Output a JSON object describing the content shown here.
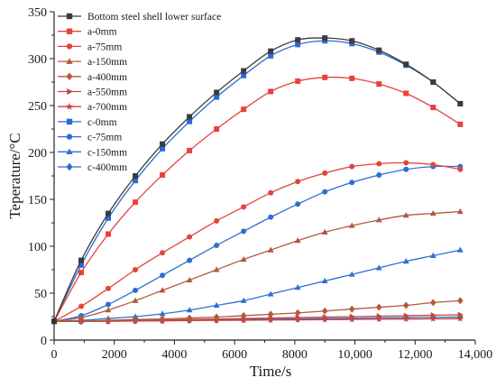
{
  "chart_data": {
    "type": "line",
    "xlabel": "Time/s",
    "ylabel": "Teperature/°C",
    "xlim": [
      0,
      14000
    ],
    "ylim": [
      0,
      350
    ],
    "grid": false,
    "legend": "top-left",
    "xticks": [
      {
        "value": 0,
        "label": "0"
      },
      {
        "value": 2000,
        "label": "2000"
      },
      {
        "value": 4000,
        "label": "4000"
      },
      {
        "value": 6000,
        "label": "6000"
      },
      {
        "value": 8000,
        "label": "8000"
      },
      {
        "value": 10000,
        "label": "10,000"
      },
      {
        "value": 12000,
        "label": "12,000"
      },
      {
        "value": 14000,
        "label": "14,000"
      }
    ],
    "yticks": [
      {
        "value": 0,
        "label": "0"
      },
      {
        "value": 50,
        "label": "50"
      },
      {
        "value": 100,
        "label": "100"
      },
      {
        "value": 150,
        "label": "150"
      },
      {
        "value": 200,
        "label": "200"
      },
      {
        "value": 250,
        "label": "250"
      },
      {
        "value": 300,
        "label": "300"
      },
      {
        "value": 350,
        "label": "350"
      }
    ],
    "x": [
      0,
      900,
      1800,
      2700,
      3600,
      4500,
      5400,
      6300,
      7200,
      8100,
      9000,
      9900,
      10800,
      11700,
      12600,
      13500
    ],
    "series": [
      {
        "name": "Bottom steel shell lower surface",
        "color": "#3b3b3b",
        "marker": "square",
        "values": [
          20,
          85,
          135,
          175,
          209,
          238,
          264,
          287,
          308,
          320,
          322,
          319,
          309,
          294,
          275,
          252
        ]
      },
      {
        "name": "a-0mm",
        "color": "#e8413b",
        "marker": "square",
        "values": [
          20,
          72,
          113,
          147,
          176,
          202,
          225,
          246,
          265,
          276,
          280,
          279,
          273,
          263,
          248,
          230
        ]
      },
      {
        "name": "a-75mm",
        "color": "#e0453a",
        "marker": "circle",
        "values": [
          20,
          36,
          55,
          75,
          93,
          110,
          127,
          142,
          157,
          169,
          178,
          185,
          188,
          189,
          187,
          182
        ]
      },
      {
        "name": "a-150mm",
        "color": "#b5573b",
        "marker": "triangle-up",
        "values": [
          20,
          24,
          32,
          42,
          53,
          64,
          75,
          86,
          96,
          106,
          115,
          122,
          128,
          133,
          135,
          137
        ]
      },
      {
        "name": "a-400mm",
        "color": "#b5573b",
        "marker": "diamond",
        "values": [
          20,
          20,
          21,
          22,
          22.5,
          23.5,
          24.5,
          26,
          27.5,
          29,
          31,
          33,
          35,
          37,
          40,
          42
        ]
      },
      {
        "name": "a-550mm",
        "color": "#c24a3c",
        "marker": "triangle-right",
        "values": [
          20,
          20,
          20.5,
          21,
          21.5,
          22,
          22.5,
          23,
          23.5,
          24,
          24.5,
          25,
          25.5,
          26,
          26.5,
          27
        ]
      },
      {
        "name": "a-700mm",
        "color": "#d24040",
        "marker": "star",
        "values": [
          20,
          20,
          20,
          20.3,
          20.5,
          20.8,
          21,
          21.2,
          21.4,
          21.6,
          21.8,
          22,
          22.2,
          22.4,
          22.6,
          22.8
        ]
      },
      {
        "name": "c-0mm",
        "color": "#2b6bd1",
        "marker": "square",
        "values": [
          20,
          80,
          130,
          170,
          204,
          233,
          259,
          282,
          303,
          315,
          319,
          316,
          307,
          293,
          275,
          252
        ]
      },
      {
        "name": "c-75mm",
        "color": "#2d6ed3",
        "marker": "circle",
        "values": [
          20,
          26,
          38,
          53,
          69,
          85,
          101,
          116,
          131,
          145,
          158,
          168,
          176,
          182,
          185,
          185
        ]
      },
      {
        "name": "c-150mm",
        "color": "#2f70d5",
        "marker": "triangle-up",
        "values": [
          20,
          21,
          23,
          25,
          28,
          32,
          37,
          42,
          49,
          56,
          63,
          70,
          77,
          84,
          90,
          96
        ]
      },
      {
        "name": "c-400mm",
        "color": "#2f6cc8",
        "marker": "diamond",
        "values": [
          20,
          20,
          20.2,
          20.5,
          20.8,
          21.2,
          21.5,
          21.9,
          22.2,
          22.6,
          23,
          23.3,
          23.6,
          24,
          24.3,
          24.6
        ]
      }
    ]
  }
}
